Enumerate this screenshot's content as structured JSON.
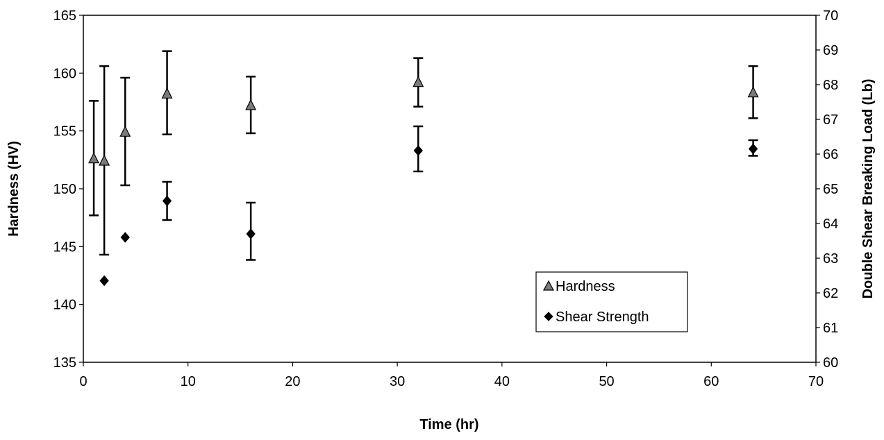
{
  "chart_data": {
    "type": "scatter",
    "xlabel": "Time (hr)",
    "ylabel": "Hardness (HV)",
    "y2label": "Double Shear Breaking Load (Lb)",
    "xlim": [
      0,
      70
    ],
    "ylim": [
      135,
      165
    ],
    "y2lim": [
      60,
      70
    ],
    "x_ticks": [
      0,
      10,
      20,
      30,
      40,
      50,
      60,
      70
    ],
    "y_ticks": [
      135,
      140,
      145,
      150,
      155,
      160,
      165
    ],
    "y2_ticks": [
      60,
      61,
      62,
      63,
      64,
      65,
      66,
      67,
      68,
      69,
      70
    ],
    "grid": false,
    "legend_position": "bottom-right",
    "series": [
      {
        "name": "Hardness",
        "axis": "left",
        "marker": "triangle",
        "color": "#7a7a7a",
        "x": [
          1,
          2,
          4,
          8,
          16,
          32,
          64
        ],
        "y": [
          152.6,
          152.4,
          154.9,
          158.2,
          157.2,
          159.2,
          158.3
        ],
        "error_low": [
          147.7,
          144.3,
          150.3,
          154.7,
          154.8,
          157.1,
          156.1
        ],
        "error_high": [
          157.6,
          160.6,
          159.6,
          161.9,
          159.7,
          161.3,
          160.6
        ]
      },
      {
        "name": "Shear Strength",
        "axis": "right",
        "marker": "diamond",
        "color": "#000000",
        "x": [
          2,
          4,
          8,
          16,
          32,
          64
        ],
        "y": [
          62.35,
          63.6,
          64.65,
          63.7,
          66.1,
          66.15
        ],
        "error_low": [
          null,
          null,
          64.1,
          62.95,
          65.5,
          65.95
        ],
        "error_high": [
          null,
          null,
          65.2,
          64.6,
          66.8,
          66.4
        ]
      }
    ]
  }
}
